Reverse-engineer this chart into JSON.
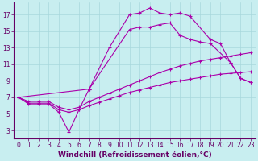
{
  "xlabel": "Windchill (Refroidissement éolien,°C)",
  "background_color": "#c8eef0",
  "grid_color": "#a8d8dc",
  "line_color": "#aa00aa",
  "xlim": [
    -0.5,
    23.5
  ],
  "ylim": [
    2,
    18.5
  ],
  "xticks": [
    0,
    1,
    2,
    3,
    4,
    5,
    6,
    7,
    8,
    9,
    10,
    11,
    12,
    13,
    14,
    15,
    16,
    17,
    18,
    19,
    20,
    21,
    22,
    23
  ],
  "yticks": [
    3,
    5,
    7,
    9,
    11,
    13,
    15,
    17
  ],
  "curve1_x": [
    0,
    1,
    2,
    3,
    4,
    5,
    6,
    7,
    9,
    11,
    12,
    13,
    14,
    15,
    16,
    17,
    19,
    20,
    21,
    22,
    23
  ],
  "curve1_y": [
    7.0,
    6.2,
    6.2,
    6.2,
    5.2,
    2.8,
    5.5,
    8.0,
    13.0,
    17.0,
    17.2,
    17.8,
    17.2,
    17.0,
    17.2,
    16.8,
    14.0,
    13.5,
    11.2,
    9.3,
    8.8
  ],
  "curve2_x": [
    0,
    7,
    11,
    12,
    13,
    14,
    15,
    16,
    17,
    18,
    19,
    21,
    22,
    23
  ],
  "curve2_y": [
    7.0,
    8.0,
    15.2,
    15.5,
    15.5,
    15.8,
    16.0,
    14.5,
    14.0,
    13.7,
    13.5,
    11.2,
    9.3,
    8.8
  ],
  "curve3_x": [
    0,
    1,
    2,
    3,
    4,
    5,
    6,
    7,
    8,
    9,
    10,
    11,
    12,
    13,
    14,
    15,
    16,
    17,
    18,
    19,
    20,
    21,
    22,
    23
  ],
  "curve3_y": [
    7.0,
    6.5,
    6.5,
    6.5,
    5.8,
    5.5,
    5.8,
    6.5,
    7.0,
    7.5,
    8.0,
    8.5,
    9.0,
    9.5,
    10.0,
    10.4,
    10.8,
    11.1,
    11.4,
    11.6,
    11.8,
    12.0,
    12.2,
    12.4
  ],
  "curve4_x": [
    0,
    1,
    2,
    3,
    4,
    5,
    6,
    7,
    8,
    9,
    10,
    11,
    12,
    13,
    14,
    15,
    16,
    17,
    18,
    19,
    20,
    21,
    22,
    23
  ],
  "curve4_y": [
    7.0,
    6.3,
    6.3,
    6.3,
    5.5,
    5.2,
    5.5,
    6.0,
    6.4,
    6.8,
    7.2,
    7.6,
    7.9,
    8.2,
    8.5,
    8.8,
    9.0,
    9.2,
    9.4,
    9.6,
    9.8,
    9.9,
    10.0,
    10.1
  ],
  "tick_fontsize": 5.5,
  "label_fontsize": 6.5
}
